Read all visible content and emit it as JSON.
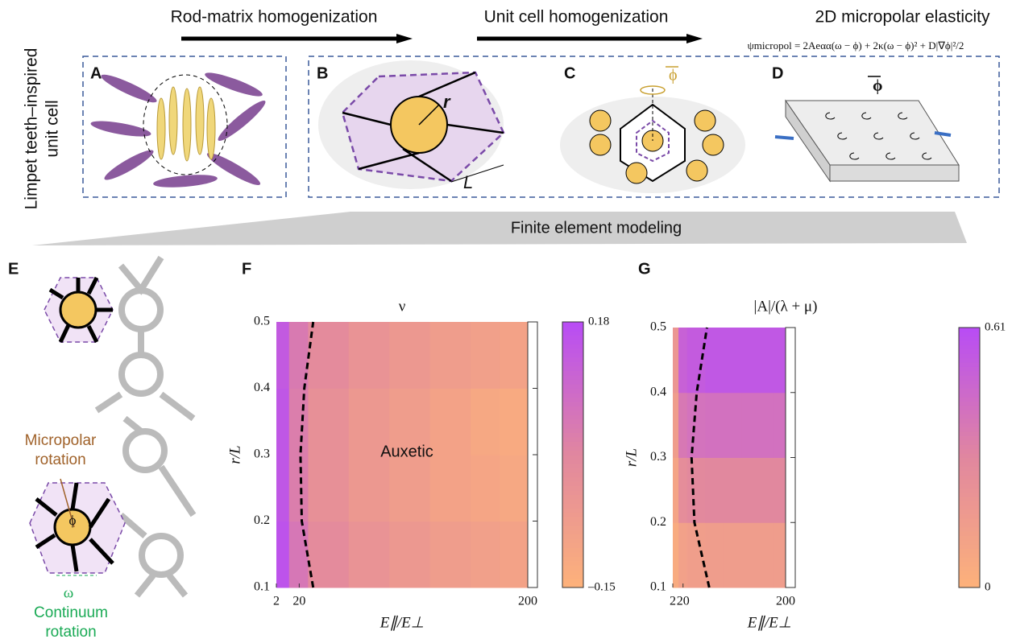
{
  "header": {
    "steps": [
      "Rod-matrix homogenization",
      "Unit cell homogenization",
      "2D micropolar elasticity"
    ],
    "equation": "ψmicropol = 2Aeαα(ω − ϕ) + 2κ(ω − ϕ)² + D|∇ϕ|²/2"
  },
  "side_label": [
    "Limpet teeth–inspired",
    "unit cell"
  ],
  "panel_labels": [
    "A",
    "B",
    "C",
    "D",
    "E"
  ],
  "annotations": {
    "r": "r",
    "L": "L",
    "phi_c": "ϕ",
    "phi_d": "ϕ"
  },
  "fem_label": "Finite element modeling",
  "panel_e": {
    "micropolar": [
      "Micropolar",
      "rotation"
    ],
    "phi": "ϕ",
    "omega": "ω",
    "continuum": [
      "Continuum",
      "rotation"
    ]
  },
  "chart_data": [
    {
      "type": "heatmap",
      "panel": "F",
      "title": "ν",
      "x_label": "E∥/E⊥",
      "y_label": "r/L",
      "annotation": "Auxetic",
      "xlim": [
        2,
        200
      ],
      "xticks": [
        2,
        20,
        200
      ],
      "ylim": [
        0.1,
        0.5
      ],
      "yticks": [
        0.1,
        0.2,
        0.3,
        0.4,
        0.5
      ],
      "x_bins": [
        2,
        12,
        27,
        59,
        91,
        123,
        155,
        178,
        200
      ],
      "y_bins": [
        0.1,
        0.2,
        0.3,
        0.4,
        0.5
      ],
      "values": [
        [
          0.16,
          0.06,
          0.0,
          -0.03,
          -0.05,
          -0.07,
          -0.08,
          -0.09
        ],
        [
          0.15,
          0.04,
          -0.02,
          -0.05,
          -0.07,
          -0.09,
          -0.1,
          -0.11
        ],
        [
          0.15,
          0.04,
          -0.02,
          -0.05,
          -0.07,
          -0.09,
          -0.11,
          -0.12
        ],
        [
          0.14,
          0.05,
          0.0,
          -0.03,
          -0.05,
          -0.07,
          -0.08,
          -0.09
        ]
      ],
      "boundary": {
        "x": [
          31,
          22,
          21,
          24,
          31
        ],
        "y": [
          0.1,
          0.2,
          0.3,
          0.4,
          0.5
        ]
      },
      "clim": [
        -0.15,
        0.18
      ],
      "cticks": [
        {
          "value": 0.18,
          "label": "0.18"
        },
        {
          "value": -0.15,
          "label": "–0.15"
        }
      ],
      "colormap": [
        "#fdb27a",
        "#e1879f",
        "#b84cf5"
      ]
    },
    {
      "type": "heatmap",
      "panel": "G",
      "title": "|A|/(λ + μ)",
      "x_label": "E∥/E⊥",
      "y_label": "r/L",
      "xlim": [
        2,
        200
      ],
      "xticks": [
        2,
        20,
        200
      ],
      "ylim": [
        0.1,
        0.5
      ],
      "yticks": [
        0.1,
        0.2,
        0.3,
        0.4,
        0.5
      ],
      "x_bins": [
        2,
        12,
        27,
        59,
        91,
        123,
        155,
        178,
        200
      ],
      "y_bins": [
        0.1,
        0.2,
        0.3,
        0.4,
        0.5
      ],
      "values": [
        [
          0.05,
          0.12,
          0.14,
          0.15,
          0.15,
          0.15,
          0.15,
          0.15
        ],
        [
          0.1,
          0.26,
          0.29,
          0.3,
          0.3,
          0.3,
          0.3,
          0.3
        ],
        [
          0.15,
          0.38,
          0.41,
          0.42,
          0.42,
          0.42,
          0.42,
          0.42
        ],
        [
          0.2,
          0.5,
          0.53,
          0.55,
          0.55,
          0.55,
          0.55,
          0.55
        ]
      ],
      "boundary": {
        "x": [
          66,
          40,
          35,
          44,
          62
        ],
        "y": [
          0.1,
          0.2,
          0.3,
          0.4,
          0.5
        ]
      },
      "clim": [
        0,
        0.61
      ],
      "cticks": [
        {
          "value": 0.61,
          "label": "0.61"
        },
        0
      ],
      "colormap": [
        "#fdb27a",
        "#e1879f",
        "#b84cf5"
      ]
    }
  ]
}
